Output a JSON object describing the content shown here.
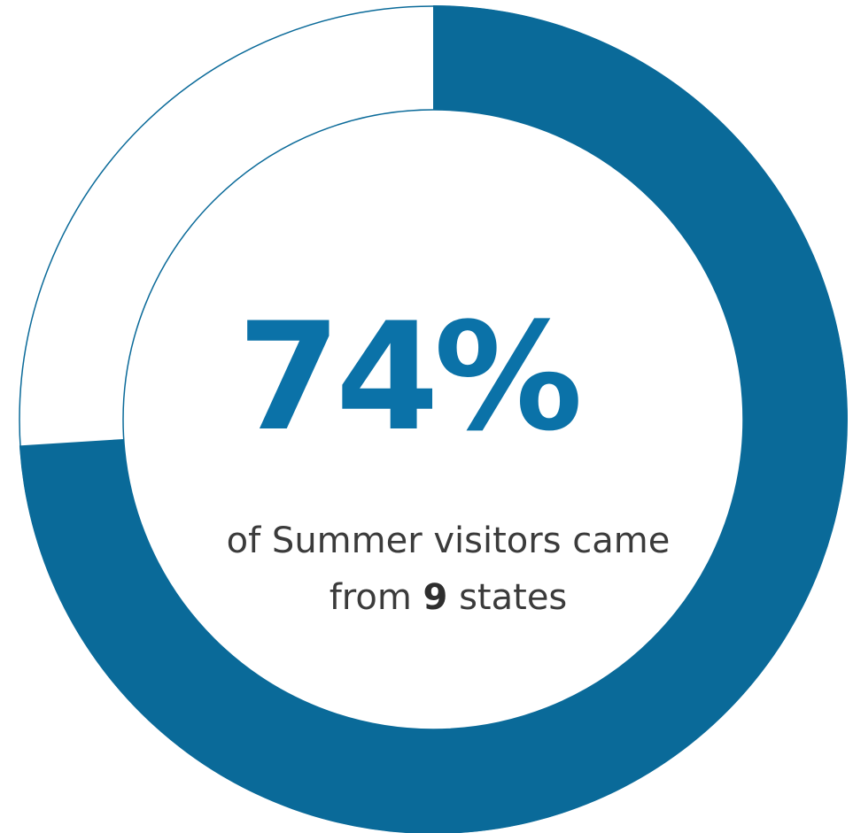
{
  "chart_data": {
    "type": "donut",
    "values": [
      74
    ],
    "value_labels": [
      "74%"
    ],
    "ylim": [
      0,
      100
    ],
    "color": "#0a6a99",
    "caption": [
      "of Summer visitors came",
      "from",
      "9",
      "states"
    ]
  }
}
